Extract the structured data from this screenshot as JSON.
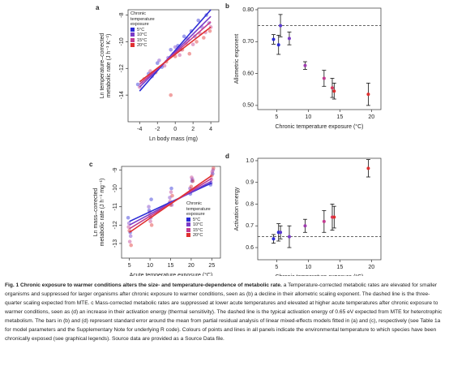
{
  "chart_data": [
    {
      "type": "scatter",
      "label": "a",
      "xlabel": "Ln body mass (mg)",
      "ylabel": [
        "Ln temperature–corrected",
        "metabolic rate (J h⁻¹ K⁻¹)"
      ],
      "xlim": [
        -5.3,
        4.9
      ],
      "ylim": [
        -16,
        -7.6
      ],
      "xticks": [
        -4,
        -2,
        0,
        2,
        4
      ],
      "yticks": [
        -14,
        -12,
        -10,
        -8
      ],
      "legend": {
        "title": "Chronic temperature exposure",
        "position": "upper left"
      },
      "series": [
        {
          "name": "5°C",
          "color": "#2b2bd6",
          "x": [
            -4.2,
            -3,
            -2,
            -1.5,
            -0.5,
            0.3,
            1,
            1.8,
            2.6,
            3.5
          ],
          "values": [
            -13.2,
            -12.4,
            -11.6,
            -11.9,
            -10.6,
            -10.3,
            -9.6,
            -9.2,
            -8.4,
            -8.0
          ],
          "line_x": [
            -4,
            4
          ],
          "line_values": [
            -13.7,
            -7.6
          ]
        },
        {
          "name": "10°C",
          "color": "#7b3cc8",
          "x": [
            -3.8,
            -2.6,
            -1.8,
            -0.8,
            0,
            0.6,
            1.4,
            2.2,
            3,
            3.8
          ],
          "values": [
            -13.0,
            -12.6,
            -11.4,
            -11.2,
            -10.4,
            -10.6,
            -9.8,
            -9.6,
            -8.9,
            -8.6
          ],
          "line_x": [
            -4,
            4
          ],
          "line_values": [
            -13.4,
            -8.1
          ]
        },
        {
          "name": "15°C",
          "color": "#c23c90",
          "x": [
            -4,
            -2.8,
            -1.2,
            -0.2,
            0.5,
            1.2,
            2,
            2.8,
            3.4,
            4
          ],
          "values": [
            -13.4,
            -12.2,
            -11.8,
            -10.9,
            -11.0,
            -10.1,
            -10.2,
            -9.4,
            -9.3,
            -8.9
          ],
          "line_x": [
            -4,
            4
          ],
          "line_values": [
            -13.2,
            -8.5
          ]
        },
        {
          "name": "20°C",
          "color": "#e03030",
          "x": [
            -3.5,
            -2.2,
            -1,
            0,
            0.8,
            1.6,
            2.4,
            3.2,
            3.9,
            -0.5
          ],
          "values": [
            -12.8,
            -12.3,
            -11.5,
            -11.1,
            -10.6,
            -10.9,
            -10.0,
            -9.7,
            -9.2,
            -14.0
          ],
          "line_x": [
            -4,
            4
          ],
          "line_values": [
            -13.0,
            -8.9
          ]
        }
      ]
    },
    {
      "type": "errorbar",
      "label": "b",
      "xlabel": "Chronic temperature exposure (°C)",
      "ylabel": "Allometric exponent",
      "xlim": [
        2,
        21.5
      ],
      "ylim": [
        0.487,
        0.805
      ],
      "xticks": [
        5,
        10,
        15,
        20
      ],
      "yticks": [
        {
          "value": 0.5,
          "label": "0.50"
        },
        {
          "value": 0.6,
          "label": "0.60"
        },
        {
          "value": 0.7,
          "label": "0.70"
        },
        {
          "value": 0.8,
          "label": "0.80"
        }
      ],
      "hline": 0.75,
      "x": [
        4.5,
        5.3,
        5.6,
        7,
        9.5,
        12.5,
        13.8,
        14.1,
        19.5
      ],
      "values": [
        0.707,
        0.69,
        0.75,
        0.71,
        0.625,
        0.585,
        0.555,
        0.545,
        0.535
      ],
      "errors": [
        0.015,
        0.03,
        0.035,
        0.02,
        0.012,
        0.025,
        0.03,
        0.025,
        0.035
      ],
      "colors": [
        "#2b2bd6",
        "#2b2bd6",
        "#5a3ad0",
        "#7b3cc8",
        "#a03cb0",
        "#c23c90",
        "#d83a60",
        "#e03030",
        "#e03030"
      ]
    },
    {
      "type": "scatter",
      "label": "c",
      "xlabel": "Acute temperature exposure (°C)",
      "ylabel": [
        "Ln mass–corrected",
        "metabolic rate (J h⁻¹ mg⁻¹)"
      ],
      "xlim": [
        3.1,
        27.1
      ],
      "ylim": [
        -13.8,
        -8.8
      ],
      "xticks": [
        5,
        10,
        15,
        20,
        25
      ],
      "yticks": [
        -13,
        -12,
        -11,
        -10,
        -9
      ],
      "legend": {
        "title": "Chronic temperature exposure",
        "position": "lower right"
      },
      "series": [
        {
          "name": "5°C",
          "color": "#2b2bd6",
          "x": [
            4.7,
            5.2,
            9.8,
            10.3,
            14.7,
            15.2,
            19.8,
            20.2,
            24.7,
            25.2
          ],
          "values": [
            -11.6,
            -12.4,
            -11.2,
            -10.6,
            -10.8,
            -10.0,
            -10.3,
            -9.6,
            -9.8,
            -9.2
          ],
          "line_x": [
            5,
            25
          ],
          "line_values": [
            -11.8,
            -9.7
          ]
        },
        {
          "name": "10°C",
          "color": "#7b3cc8",
          "x": [
            4.9,
            5.3,
            9.7,
            10.2,
            14.8,
            15.3,
            19.7,
            20.3,
            24.8,
            25.3
          ],
          "values": [
            -11.9,
            -12.6,
            -11.0,
            -11.6,
            -10.5,
            -10.9,
            -10.0,
            -9.5,
            -9.7,
            -9.0
          ],
          "line_x": [
            5,
            25
          ],
          "line_values": [
            -12.0,
            -9.6
          ]
        },
        {
          "name": "15°C",
          "color": "#c23c90",
          "x": [
            4.8,
            5.1,
            9.9,
            10.1,
            14.9,
            15.1,
            19.9,
            20.1,
            24.9,
            25.1
          ],
          "values": [
            -12.1,
            -12.9,
            -11.3,
            -11.8,
            -10.7,
            -10.2,
            -10.1,
            -9.4,
            -9.5,
            -9.1
          ],
          "line_x": [
            5,
            25
          ],
          "line_values": [
            -12.2,
            -9.45
          ]
        },
        {
          "name": "20°C",
          "color": "#e03030",
          "x": [
            5.0,
            5.4,
            10.0,
            10.4,
            15.0,
            15.4,
            20.0,
            20.4,
            25.0,
            25.4
          ],
          "values": [
            -12.3,
            -13.1,
            -11.5,
            -12.0,
            -10.9,
            -10.4,
            -9.9,
            -9.6,
            -9.3,
            -8.9
          ],
          "line_x": [
            5,
            25
          ],
          "line_values": [
            -12.4,
            -9.3
          ]
        }
      ]
    },
    {
      "type": "errorbar",
      "label": "d",
      "xlabel": "Chronic temperature exposure (°C)",
      "ylabel": "Activation energy",
      "xlim": [
        2,
        21.5
      ],
      "ylim": [
        0.544,
        1.011
      ],
      "xticks": [
        5,
        10,
        15,
        20
      ],
      "yticks": [
        0.6,
        0.7,
        0.8,
        0.9,
        {
          "value": 1.0,
          "label": "1.0"
        }
      ],
      "hline": 0.65,
      "x": [
        4.5,
        5.3,
        5.6,
        7,
        9.5,
        12.5,
        13.8,
        14.1,
        19.5
      ],
      "values": [
        0.64,
        0.67,
        0.67,
        0.65,
        0.7,
        0.72,
        0.74,
        0.74,
        0.965
      ],
      "errors": [
        0.02,
        0.04,
        0.03,
        0.05,
        0.03,
        0.05,
        0.06,
        0.05,
        0.04
      ],
      "colors": [
        "#2b2bd6",
        "#2b2bd6",
        "#5a3ad0",
        "#7b3cc8",
        "#a03cb0",
        "#c23c90",
        "#d83a60",
        "#e03030",
        "#e03030"
      ]
    }
  ],
  "caption": {
    "title": "Fig. 1 Chronic exposure to warmer conditions alters the size- and temperature-dependence of metabolic rate.",
    "text": "a Temperature-corrected metabolic rates are elevated for smaller organisms and suppressed for larger organisms after chronic exposure to warmer conditions, seen as (b) a decline in their allometric scaling exponent. The dashed line is the three-quarter scaling expected from MTE. c Mass-corrected metabolic rates are suppressed at lower acute temperatures and elevated at higher acute temperatures after chronic exposure to warmer conditions, seen as (d) an increase in their activation energy (thermal sensitivity). The dashed line is the typical activation energy of 0.65 eV expected from MTE for heterotrophic metabolism. The bars in (b) and (d) represent standard error around the mean from partial residual analysis of linear mixed-effects models fitted in (a) and (c), respectively (see Table 1a for model parameters and the Supplementary Note for underlying R code). Colours of points and lines in all panels indicate the environmental temperature to which species have been chronically exposed (see graphical legends). Source data are provided as a Source Data file."
  }
}
